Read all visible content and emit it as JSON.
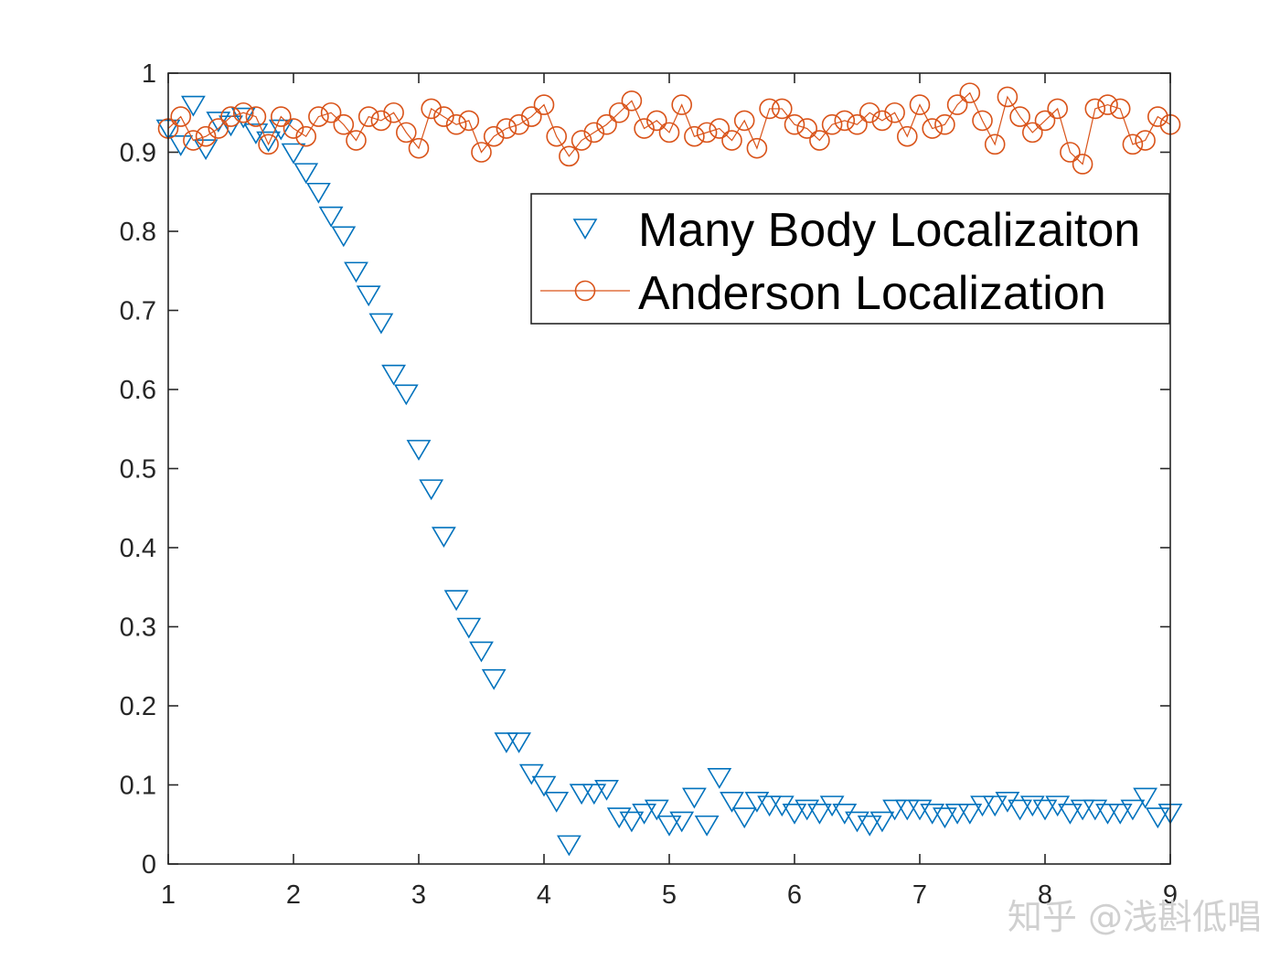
{
  "chart_data": {
    "type": "scatter",
    "title": "",
    "xlabel": "",
    "ylabel": "",
    "xlim": [
      1,
      9
    ],
    "ylim": [
      0,
      1
    ],
    "x_ticks": [
      "1",
      "2",
      "3",
      "4",
      "5",
      "6",
      "7",
      "8",
      "9"
    ],
    "y_ticks": [
      "0",
      "0.1",
      "0.2",
      "0.3",
      "0.4",
      "0.5",
      "0.6",
      "0.7",
      "0.8",
      "0.9",
      "1"
    ],
    "grid": false,
    "legend_position": "upper-right",
    "x": [
      1.0,
      1.1,
      1.2,
      1.3,
      1.4,
      1.5,
      1.6,
      1.7,
      1.8,
      1.9,
      2.0,
      2.1,
      2.2,
      2.3,
      2.4,
      2.5,
      2.6,
      2.7,
      2.8,
      2.9,
      3.0,
      3.1,
      3.2,
      3.3,
      3.4,
      3.5,
      3.6,
      3.7,
      3.8,
      3.9,
      4.0,
      4.1,
      4.2,
      4.3,
      4.4,
      4.5,
      4.6,
      4.7,
      4.8,
      4.9,
      5.0,
      5.1,
      5.2,
      5.3,
      5.4,
      5.5,
      5.6,
      5.7,
      5.8,
      5.9,
      6.0,
      6.1,
      6.2,
      6.3,
      6.4,
      6.5,
      6.6,
      6.7,
      6.8,
      6.9,
      7.0,
      7.1,
      7.2,
      7.3,
      7.4,
      7.5,
      7.6,
      7.7,
      7.8,
      7.9,
      8.0,
      8.1,
      8.2,
      8.3,
      8.4,
      8.5,
      8.6,
      8.7,
      8.8,
      8.9,
      9.0
    ],
    "series": [
      {
        "name": "Many Body Localizaiton",
        "marker": "triangle-down",
        "line": false,
        "color": "#0072BD",
        "values": [
          0.93,
          0.91,
          0.96,
          0.905,
          0.94,
          0.935,
          0.945,
          0.925,
          0.915,
          0.93,
          0.9,
          0.875,
          0.85,
          0.82,
          0.795,
          0.75,
          0.72,
          0.685,
          0.62,
          0.595,
          0.525,
          0.475,
          0.415,
          0.335,
          0.3,
          0.27,
          0.235,
          0.155,
          0.155,
          0.115,
          0.1,
          0.08,
          0.025,
          0.09,
          0.09,
          0.095,
          0.06,
          0.055,
          0.065,
          0.07,
          0.05,
          0.055,
          0.085,
          0.05,
          0.11,
          0.08,
          0.06,
          0.08,
          0.075,
          0.075,
          0.065,
          0.07,
          0.065,
          0.075,
          0.065,
          0.055,
          0.05,
          0.055,
          0.07,
          0.07,
          0.07,
          0.065,
          0.06,
          0.065,
          0.065,
          0.075,
          0.075,
          0.08,
          0.07,
          0.075,
          0.07,
          0.075,
          0.065,
          0.07,
          0.07,
          0.065,
          0.065,
          0.07,
          0.085,
          0.06,
          0.065
        ]
      },
      {
        "name": "Anderson Localization",
        "marker": "circle",
        "line": true,
        "color": "#D95319",
        "values": [
          0.93,
          0.945,
          0.915,
          0.92,
          0.93,
          0.945,
          0.95,
          0.945,
          0.91,
          0.945,
          0.93,
          0.92,
          0.945,
          0.95,
          0.935,
          0.915,
          0.945,
          0.94,
          0.95,
          0.925,
          0.905,
          0.955,
          0.945,
          0.935,
          0.94,
          0.9,
          0.92,
          0.93,
          0.935,
          0.945,
          0.96,
          0.92,
          0.895,
          0.915,
          0.925,
          0.935,
          0.95,
          0.965,
          0.93,
          0.94,
          0.925,
          0.96,
          0.92,
          0.925,
          0.93,
          0.915,
          0.94,
          0.905,
          0.955,
          0.955,
          0.935,
          0.93,
          0.915,
          0.935,
          0.94,
          0.935,
          0.95,
          0.94,
          0.95,
          0.92,
          0.96,
          0.93,
          0.935,
          0.96,
          0.975,
          0.94,
          0.91,
          0.97,
          0.945,
          0.925,
          0.94,
          0.955,
          0.9,
          0.885,
          0.955,
          0.96,
          0.955,
          0.91,
          0.915,
          0.945,
          0.935
        ]
      }
    ]
  },
  "watermark": "知乎 @浅斟低唱"
}
